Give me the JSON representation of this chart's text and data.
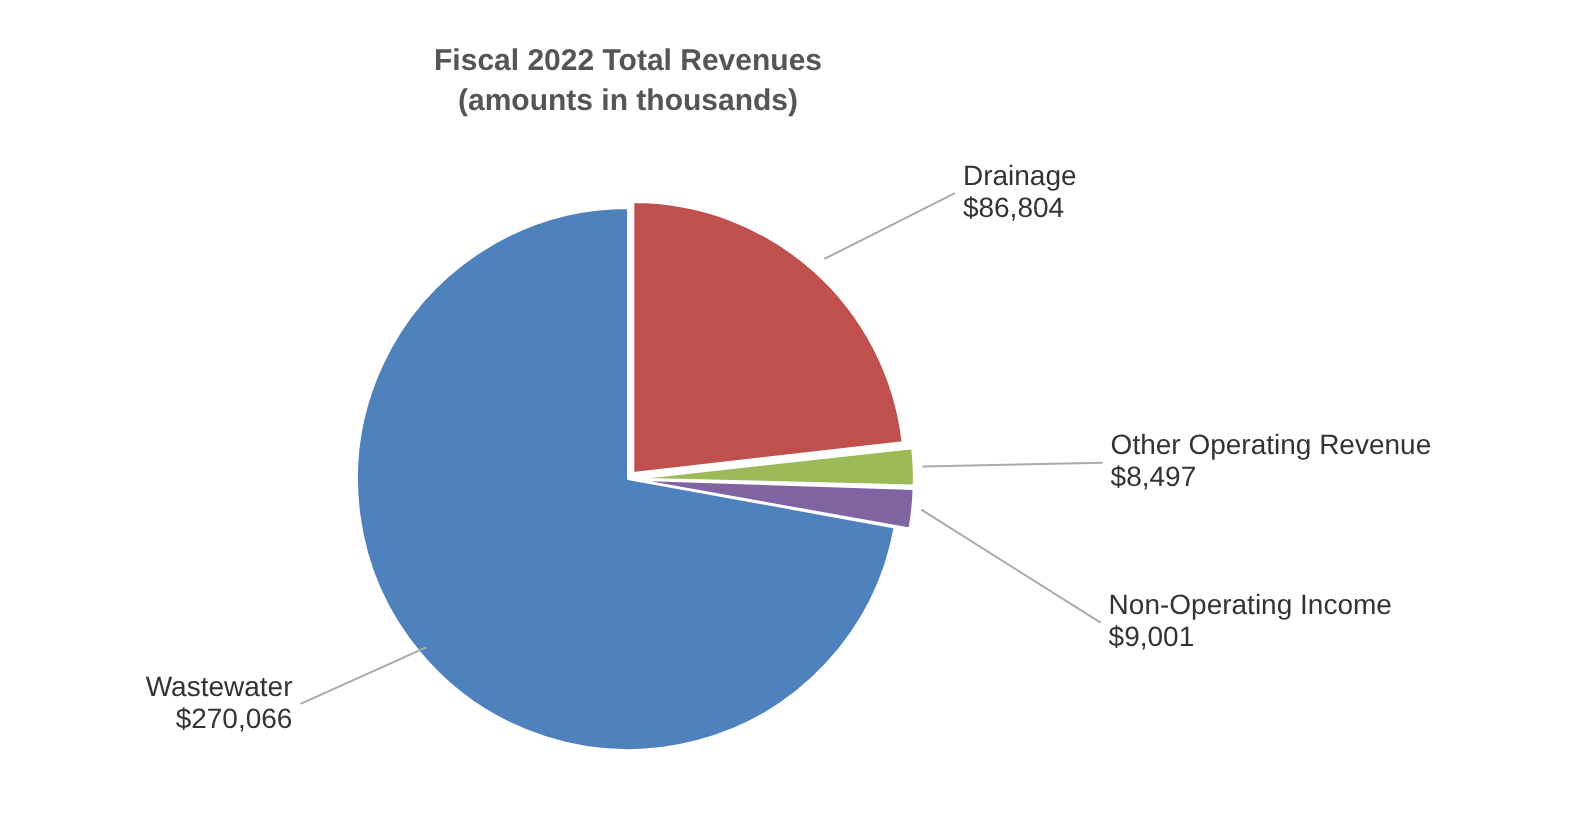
{
  "chart_data": {
    "type": "pie",
    "title": "Fiscal 2022 Total Revenues",
    "subtitle": "(amounts in thousands)",
    "categories": [
      "Drainage",
      "Other Operating Revenue",
      "Non-Operating Income",
      "Wastewater"
    ],
    "values": [
      86804,
      8497,
      9001,
      270066
    ],
    "colors": [
      "#c0504d",
      "#9bbb59",
      "#8064a2",
      "#4f81bd"
    ],
    "value_labels": [
      "$86,804",
      "$8,497",
      "$9,001",
      "$270,066"
    ],
    "legend": false
  }
}
